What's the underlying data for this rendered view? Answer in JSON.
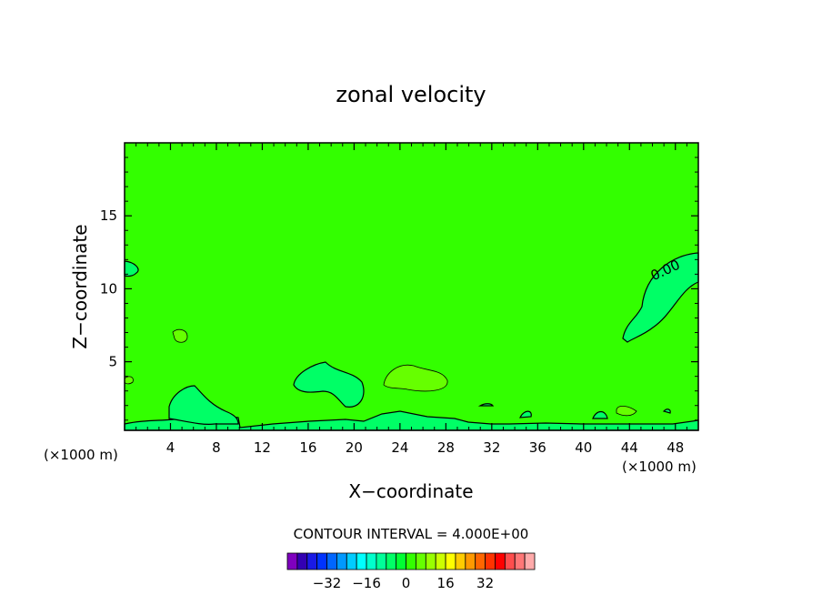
{
  "chart_data": {
    "type": "contour",
    "title": "zonal velocity",
    "xlabel": "X−coordinate",
    "ylabel": "Z−coordinate",
    "x_unit_left": "(×1000 m)",
    "x_unit_right": "(×1000 m)",
    "xlim": [
      0,
      50
    ],
    "ylim": [
      0.3,
      20
    ],
    "x_ticks": [
      4,
      8,
      12,
      16,
      20,
      24,
      28,
      32,
      36,
      40,
      44,
      48
    ],
    "y_ticks": [
      5,
      10,
      15
    ],
    "contour_label": "0.00",
    "contour_interval_text": "CONTOUR INTERVAL = 4.000E+00",
    "field_color": "#33ff00",
    "colorbar": {
      "colors": [
        "#7f00bf",
        "#3300b3",
        "#1a1ae6",
        "#0033ff",
        "#0066ff",
        "#0099ff",
        "#00ccff",
        "#00ffff",
        "#00ffcc",
        "#00ff99",
        "#00ff66",
        "#00ff33",
        "#33ff00",
        "#66ff00",
        "#99ff00",
        "#ccff00",
        "#ffff00",
        "#ffcc00",
        "#ff9900",
        "#ff6600",
        "#ff3300",
        "#ff0000",
        "#ff4d4d",
        "#ff7777",
        "#ffaaaa"
      ],
      "tick_labels": [
        "−32",
        "−16",
        "0",
        "16",
        "32"
      ],
      "tick_values": [
        -32,
        -16,
        0,
        16,
        32
      ],
      "min": -48,
      "max": 52
    }
  }
}
